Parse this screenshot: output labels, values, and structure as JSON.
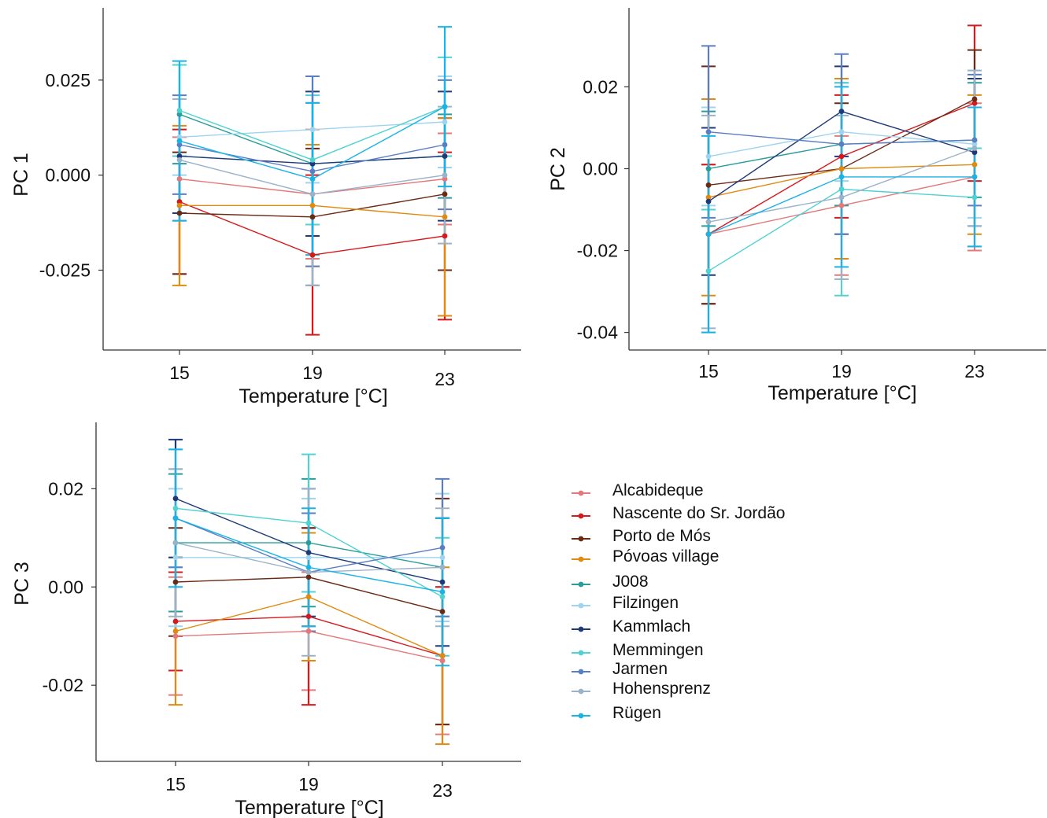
{
  "series_colors": {
    "Alcabideque": "#e4787a",
    "Nascente do Sr. Jordão": "#d7191c",
    "Porto de Mós": "#6b2a14",
    "Póvoas village": "#e08a10",
    "J008": "#2a9d9a",
    "Filzingen": "#9ed4ef",
    "Kammlach": "#1f3a78",
    "Memmingen": "#4fd2d2",
    "Jarmen": "#5b7ec2",
    "Hohensprenz": "#9bb3c8",
    "Rügen": "#1ab3e6"
  },
  "legend": {
    "items": [
      "Alcabideque",
      "Nascente do Sr. Jordão",
      "Porto de Mós",
      "Póvoas village",
      "J008",
      "Filzingen",
      "Kammlach",
      "Memmingen",
      "Jarmen",
      "Hohensprenz",
      "Rügen"
    ]
  },
  "chart_data": [
    {
      "type": "line",
      "xlabel": "Temperature [°C]",
      "ylabel": "PC 1",
      "x": [
        15,
        19,
        23
      ],
      "xtick_labels": [
        "15",
        "19",
        "23"
      ],
      "ylim": [
        -0.046,
        0.044
      ],
      "yticks": [
        0.025,
        0.0,
        -0.025
      ],
      "ytick_labels": [
        "0.025",
        "0.000",
        "-0.025"
      ],
      "series": [
        {
          "name": "Alcabideque",
          "values": [
            -0.001,
            -0.005,
            -0.001
          ],
          "err": [
            0.011,
            0.017,
            0.012
          ]
        },
        {
          "name": "Nascente do Sr. Jordão",
          "values": [
            -0.007,
            -0.021,
            -0.016
          ],
          "err": [
            0.019,
            0.021,
            0.022
          ]
        },
        {
          "name": "Porto de Mós",
          "values": [
            -0.01,
            -0.011,
            -0.005
          ],
          "err": [
            0.016,
            0.018,
            0.02
          ]
        },
        {
          "name": "Póvoas village",
          "values": [
            -0.008,
            -0.008,
            -0.011
          ],
          "err": [
            0.021,
            0.016,
            0.026
          ]
        },
        {
          "name": "J008",
          "values": [
            0.016,
            0.003,
            0.005
          ],
          "err": [
            0.013,
            0.016,
            0.011
          ]
        },
        {
          "name": "Filzingen",
          "values": [
            0.01,
            0.012,
            0.014
          ],
          "err": [
            0.01,
            0.014,
            0.012
          ]
        },
        {
          "name": "Kammlach",
          "values": [
            0.005,
            0.003,
            0.005
          ],
          "err": [
            0.015,
            0.019,
            0.017
          ]
        },
        {
          "name": "Memmingen",
          "values": [
            0.017,
            0.004,
            0.018
          ],
          "err": [
            0.012,
            0.017,
            0.013
          ]
        },
        {
          "name": "Jarmen",
          "values": [
            0.008,
            0.001,
            0.008
          ],
          "err": [
            0.013,
            0.025,
            0.017
          ]
        },
        {
          "name": "Hohensprenz",
          "values": [
            0.004,
            -0.005,
            0.0
          ],
          "err": [
            0.016,
            0.024,
            0.018
          ]
        },
        {
          "name": "Rügen",
          "values": [
            0.009,
            -0.001,
            0.018
          ],
          "err": [
            0.021,
            0.02,
            0.021
          ]
        }
      ]
    },
    {
      "type": "line",
      "xlabel": "Temperature [°C]",
      "ylabel": "PC 2",
      "x": [
        15,
        19,
        23
      ],
      "xtick_labels": [
        "15",
        "19",
        "23"
      ],
      "ylim": [
        -0.0443,
        0.0393
      ],
      "yticks": [
        0.02,
        0.0,
        -0.02,
        -0.04
      ],
      "ytick_labels": [
        "0.02",
        "0.00",
        "-0.02",
        "-0.04"
      ],
      "series": [
        {
          "name": "Alcabideque",
          "values": [
            -0.016,
            -0.009,
            -0.002
          ],
          "err": [
            0.017,
            0.017,
            0.018
          ]
        },
        {
          "name": "Nascente do Sr. Jordão",
          "values": [
            -0.016,
            0.003,
            0.016
          ],
          "err": [
            0.017,
            0.015,
            0.019
          ]
        },
        {
          "name": "Porto de Mós",
          "values": [
            -0.004,
            0.0,
            0.017
          ],
          "err": [
            0.029,
            0.016,
            0.012
          ]
        },
        {
          "name": "Póvoas village",
          "values": [
            -0.007,
            0.0,
            0.001
          ],
          "err": [
            0.024,
            0.022,
            0.017
          ]
        },
        {
          "name": "J008",
          "values": [
            0.0,
            0.006,
            0.007
          ],
          "err": [
            0.014,
            0.015,
            0.014
          ]
        },
        {
          "name": "Filzingen",
          "values": [
            0.003,
            0.009,
            0.006
          ],
          "err": [
            0.012,
            0.012,
            0.018
          ]
        },
        {
          "name": "Kammlach",
          "values": [
            -0.008,
            0.014,
            0.004
          ],
          "err": [
            0.018,
            0.011,
            0.018
          ]
        },
        {
          "name": "Memmingen",
          "values": [
            -0.025,
            -0.005,
            -0.007
          ],
          "err": [
            0.015,
            0.026,
            0.012
          ]
        },
        {
          "name": "Jarmen",
          "values": [
            0.009,
            0.006,
            0.007
          ],
          "err": [
            0.021,
            0.022,
            0.016
          ]
        },
        {
          "name": "Hohensprenz",
          "values": [
            -0.013,
            -0.007,
            0.005
          ],
          "err": [
            0.026,
            0.02,
            0.019
          ]
        },
        {
          "name": "Rügen",
          "values": [
            -0.016,
            -0.002,
            -0.002
          ],
          "err": [
            0.024,
            0.022,
            0.017
          ]
        }
      ]
    },
    {
      "type": "line",
      "xlabel": "Temperature [°C]",
      "ylabel": "PC 3",
      "x": [
        15,
        19,
        23
      ],
      "xtick_labels": [
        "15",
        "19",
        "23"
      ],
      "ylim": [
        -0.0355,
        0.0335
      ],
      "yticks": [
        0.02,
        0.0,
        -0.02
      ],
      "ytick_labels": [
        "0.02",
        "0.00",
        "-0.02"
      ],
      "series": [
        {
          "name": "Alcabideque",
          "values": [
            -0.01,
            -0.009,
            -0.015
          ],
          "err": [
            0.012,
            0.012,
            0.015
          ]
        },
        {
          "name": "Nascente do Sr. Jordão",
          "values": [
            -0.007,
            -0.006,
            -0.014
          ],
          "err": [
            0.01,
            0.018,
            0.014
          ]
        },
        {
          "name": "Porto de Mós",
          "values": [
            0.001,
            0.002,
            -0.005
          ],
          "err": [
            0.011,
            0.01,
            0.023
          ]
        },
        {
          "name": "Póvoas village",
          "values": [
            -0.009,
            -0.002,
            -0.014
          ],
          "err": [
            0.015,
            0.013,
            0.018
          ]
        },
        {
          "name": "J008",
          "values": [
            0.009,
            0.009,
            0.004
          ],
          "err": [
            0.014,
            0.013,
            0.01
          ]
        },
        {
          "name": "Filzingen",
          "values": [
            0.006,
            0.006,
            0.006
          ],
          "err": [
            0.014,
            0.012,
            0.013
          ]
        },
        {
          "name": "Kammlach",
          "values": [
            0.018,
            0.007,
            0.001
          ],
          "err": [
            0.012,
            0.013,
            0.013
          ]
        },
        {
          "name": "Memmingen",
          "values": [
            0.016,
            0.013,
            -0.002
          ],
          "err": [
            0.012,
            0.014,
            0.012
          ]
        },
        {
          "name": "Jarmen",
          "values": [
            0.014,
            0.003,
            0.008
          ],
          "err": [
            0.01,
            0.012,
            0.014
          ]
        },
        {
          "name": "Hohensprenz",
          "values": [
            0.009,
            0.003,
            0.004
          ],
          "err": [
            0.015,
            0.017,
            0.012
          ]
        },
        {
          "name": "Rügen",
          "values": [
            0.014,
            0.004,
            -0.001
          ],
          "err": [
            0.014,
            0.012,
            0.015
          ]
        }
      ]
    }
  ]
}
